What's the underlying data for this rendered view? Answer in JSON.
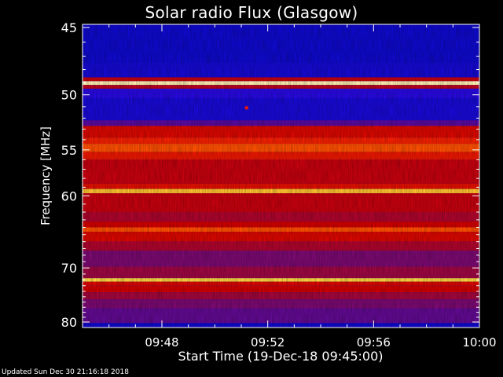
{
  "chart_data": {
    "type": "heatmap",
    "title": "Solar radio Flux (Glasgow)",
    "xlabel": "Start Time (19-Dec-18 09:45:00)",
    "ylabel": "Frequency [MHz]",
    "x_ticks": [
      "09:48",
      "09:52",
      "09:56",
      "10:00"
    ],
    "x_tick_minutes": [
      3,
      7,
      11,
      15
    ],
    "x_range_minutes": [
      0,
      15
    ],
    "y_ticks": [
      45,
      50,
      55,
      60,
      70,
      80
    ],
    "y_range_mhz": [
      45,
      80
    ],
    "y_scale": "reciprocal",
    "colormap": "black-blue-red-yellow-white",
    "bands": [
      {
        "from": 44.8,
        "to": 47.5,
        "level": 0.3
      },
      {
        "from": 47.5,
        "to": 48.6,
        "level": 0.33
      },
      {
        "from": 48.6,
        "to": 48.9,
        "level": 0.62
      },
      {
        "from": 48.9,
        "to": 49.2,
        "level": 0.97
      },
      {
        "from": 49.2,
        "to": 49.5,
        "level": 0.6
      },
      {
        "from": 49.5,
        "to": 50.3,
        "level": 0.4
      },
      {
        "from": 50.3,
        "to": 52.2,
        "level": 0.34
      },
      {
        "from": 52.2,
        "to": 52.7,
        "level": 0.46
      },
      {
        "from": 52.7,
        "to": 53.8,
        "level": 0.66
      },
      {
        "from": 53.8,
        "to": 54.4,
        "level": 0.72
      },
      {
        "from": 54.4,
        "to": 55.2,
        "level": 0.78
      },
      {
        "from": 55.2,
        "to": 56.0,
        "level": 0.7
      },
      {
        "from": 56.0,
        "to": 58.6,
        "level": 0.62
      },
      {
        "from": 58.6,
        "to": 59.2,
        "level": 0.68
      },
      {
        "from": 59.2,
        "to": 59.7,
        "level": 0.9
      },
      {
        "from": 59.7,
        "to": 62.0,
        "level": 0.62
      },
      {
        "from": 62.0,
        "to": 63.2,
        "level": 0.58
      },
      {
        "from": 63.2,
        "to": 64.0,
        "level": 0.64
      },
      {
        "from": 64.0,
        "to": 64.6,
        "level": 0.78
      },
      {
        "from": 64.6,
        "to": 66.0,
        "level": 0.66
      },
      {
        "from": 66.0,
        "to": 67.3,
        "level": 0.58
      },
      {
        "from": 67.3,
        "to": 69.8,
        "level": 0.5
      },
      {
        "from": 69.8,
        "to": 71.7,
        "level": 0.55
      },
      {
        "from": 71.7,
        "to": 72.3,
        "level": 0.92
      },
      {
        "from": 72.3,
        "to": 73.0,
        "level": 0.66
      },
      {
        "from": 73.0,
        "to": 74.2,
        "level": 0.64
      },
      {
        "from": 74.2,
        "to": 75.5,
        "level": 0.56
      },
      {
        "from": 75.5,
        "to": 77.2,
        "level": 0.5
      },
      {
        "from": 77.2,
        "to": 80.2,
        "level": 0.47
      }
    ],
    "burst": {
      "time_minutes": 6.2,
      "freq_mhz": 51.1,
      "level": 0.7
    }
  },
  "footer": {
    "updated": "Updated Sun Dec 30 21:16:18 2018"
  }
}
